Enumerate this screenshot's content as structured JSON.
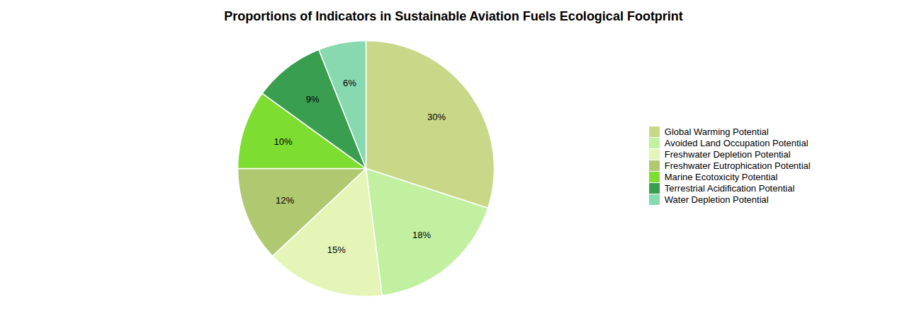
{
  "chart_data": {
    "type": "pie",
    "title": "Proportions of Indicators in Sustainable Aviation Fuels Ecological Footprint",
    "categories": [
      "Global Warming Potential",
      "Avoided Land Occupation Potential",
      "Freshwater Depletion Potential",
      "Freshwater Eutrophication Potential",
      "Marine Ecotoxicity Potential",
      "Terrestrial Acidification Potential",
      "Water Depletion Potential"
    ],
    "values": [
      30,
      18,
      15,
      12,
      10,
      9,
      6
    ],
    "value_labels": [
      "30%",
      "18%",
      "15%",
      "12%",
      "10%",
      "9%",
      "6%"
    ],
    "data_labels": true,
    "colors": [
      "#c8d888",
      "#c0f0a0",
      "#e5f5b8",
      "#b0c870",
      "#7ddd30",
      "#3a9e50",
      "#88d8b0"
    ],
    "legend": "right"
  }
}
